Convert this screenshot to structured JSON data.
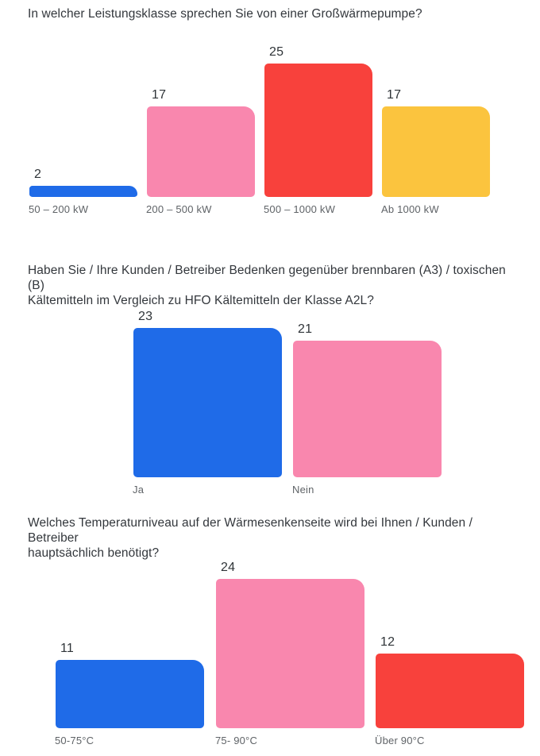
{
  "page": {
    "background": "#ffffff",
    "title_color": "#33373c",
    "value_label_color": "#2f3438",
    "category_label_color": "#5f6367"
  },
  "chart_data": [
    {
      "type": "bar",
      "title": "In welcher Leistungsklasse sprechen Sie von einer Großwärmepumpe?",
      "categories": [
        "50 – 200 kW",
        "200 – 500 kW",
        "500 – 1000 kW",
        "Ab 1000 kW"
      ],
      "values": [
        2,
        17,
        25,
        17
      ],
      "colors": [
        "#1f6be8",
        "#f987ae",
        "#f8413c",
        "#fbc43e"
      ],
      "xlabel": "",
      "ylabel": "",
      "ylim": [
        0,
        25
      ],
      "grid": false,
      "legend": "none",
      "value_labels_shown": true
    },
    {
      "type": "bar",
      "title": "Haben Sie / Ihre Kunden / Betreiber Bedenken gegenüber brennbaren (A3) / toxischen (B)\nKältemitteln im Vergleich zu HFO Kältemitteln der Klasse A2L?",
      "categories": [
        "Ja",
        "Nein"
      ],
      "values": [
        23,
        21
      ],
      "colors": [
        "#1f6be8",
        "#f987ae"
      ],
      "xlabel": "",
      "ylabel": "",
      "ylim": [
        0,
        23
      ],
      "grid": false,
      "legend": "none",
      "value_labels_shown": true
    },
    {
      "type": "bar",
      "title": "Welches Temperaturniveau auf der Wärmesenkenseite wird bei Ihnen / Kunden / Betreiber\nhauptsächlich benötigt?",
      "categories": [
        "50-75°C",
        "75- 90°C",
        "Über 90°C"
      ],
      "values": [
        11,
        24,
        12
      ],
      "colors": [
        "#1f6be8",
        "#f987ae",
        "#f8413c"
      ],
      "xlabel": "",
      "ylabel": "",
      "ylim": [
        0,
        24
      ],
      "grid": false,
      "legend": "none",
      "value_labels_shown": true
    }
  ]
}
